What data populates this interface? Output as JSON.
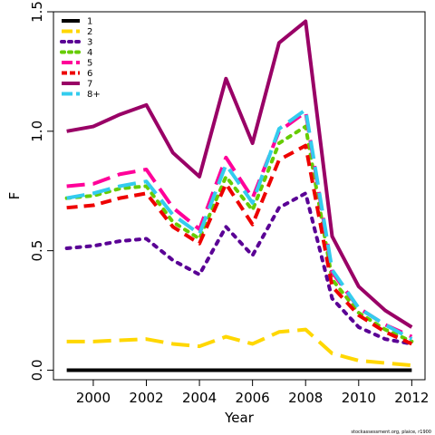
{
  "chart_data": {
    "type": "line",
    "title": "",
    "xlabel": "Year",
    "ylabel": "F",
    "xlim": [
      1998.5,
      2012.5
    ],
    "ylim": [
      -0.04,
      1.5
    ],
    "x_ticks": [
      2000,
      2002,
      2004,
      2006,
      2008,
      2010,
      2012
    ],
    "y_ticks": [
      0.0,
      0.5,
      1.0,
      1.5
    ],
    "y_tick_labels": [
      "0.0",
      "0.5",
      "1.0",
      "1.5"
    ],
    "legend_position": "top-left",
    "grid": false,
    "x": [
      1999,
      2000,
      2001,
      2002,
      2003,
      2004,
      2005,
      2006,
      2007,
      2008,
      2009,
      2010,
      2011,
      2012
    ],
    "series": [
      {
        "name": "1",
        "color": "#000000",
        "dash": "solid",
        "values": [
          0.0,
          0.0,
          0.0,
          0.0,
          0.0,
          0.0,
          0.0,
          0.0,
          0.0,
          0.0,
          0.0,
          0.0,
          0.0,
          0.0
        ]
      },
      {
        "name": "2",
        "color": "#FFD700",
        "dash": "long-dash",
        "values": [
          0.12,
          0.12,
          0.125,
          0.13,
          0.11,
          0.1,
          0.14,
          0.11,
          0.16,
          0.17,
          0.07,
          0.04,
          0.03,
          0.02
        ]
      },
      {
        "name": "3",
        "color": "#5A0095",
        "dash": "dotted",
        "values": [
          0.51,
          0.52,
          0.54,
          0.55,
          0.46,
          0.4,
          0.6,
          0.48,
          0.68,
          0.74,
          0.3,
          0.18,
          0.13,
          0.11
        ]
      },
      {
        "name": "4",
        "color": "#66CC00",
        "dash": "dotted",
        "values": [
          0.72,
          0.73,
          0.76,
          0.77,
          0.62,
          0.55,
          0.81,
          0.67,
          0.95,
          1.02,
          0.38,
          0.24,
          0.17,
          0.12
        ]
      },
      {
        "name": "5",
        "color": "#FF0099",
        "dash": "long-dash",
        "values": [
          0.77,
          0.78,
          0.82,
          0.84,
          0.68,
          0.59,
          0.89,
          0.72,
          1.0,
          1.08,
          0.41,
          0.26,
          0.19,
          0.14
        ]
      },
      {
        "name": "6",
        "color": "#EE0000",
        "dash": "dash",
        "values": [
          0.68,
          0.69,
          0.72,
          0.74,
          0.6,
          0.53,
          0.78,
          0.61,
          0.88,
          0.94,
          0.35,
          0.23,
          0.16,
          0.11
        ]
      },
      {
        "name": "7",
        "color": "#990066",
        "dash": "solid",
        "values": [
          1.0,
          1.02,
          1.07,
          1.11,
          0.91,
          0.81,
          1.22,
          0.95,
          1.37,
          1.46,
          0.56,
          0.35,
          0.25,
          0.18
        ]
      },
      {
        "name": "8+",
        "color": "#33CCEE",
        "dash": "long-dash",
        "values": [
          0.72,
          0.74,
          0.77,
          0.79,
          0.65,
          0.57,
          0.86,
          0.7,
          1.01,
          1.09,
          0.42,
          0.26,
          0.19,
          0.13
        ]
      }
    ]
  },
  "footer": {
    "credit": "stockassessment.org, plaice, r1900"
  }
}
